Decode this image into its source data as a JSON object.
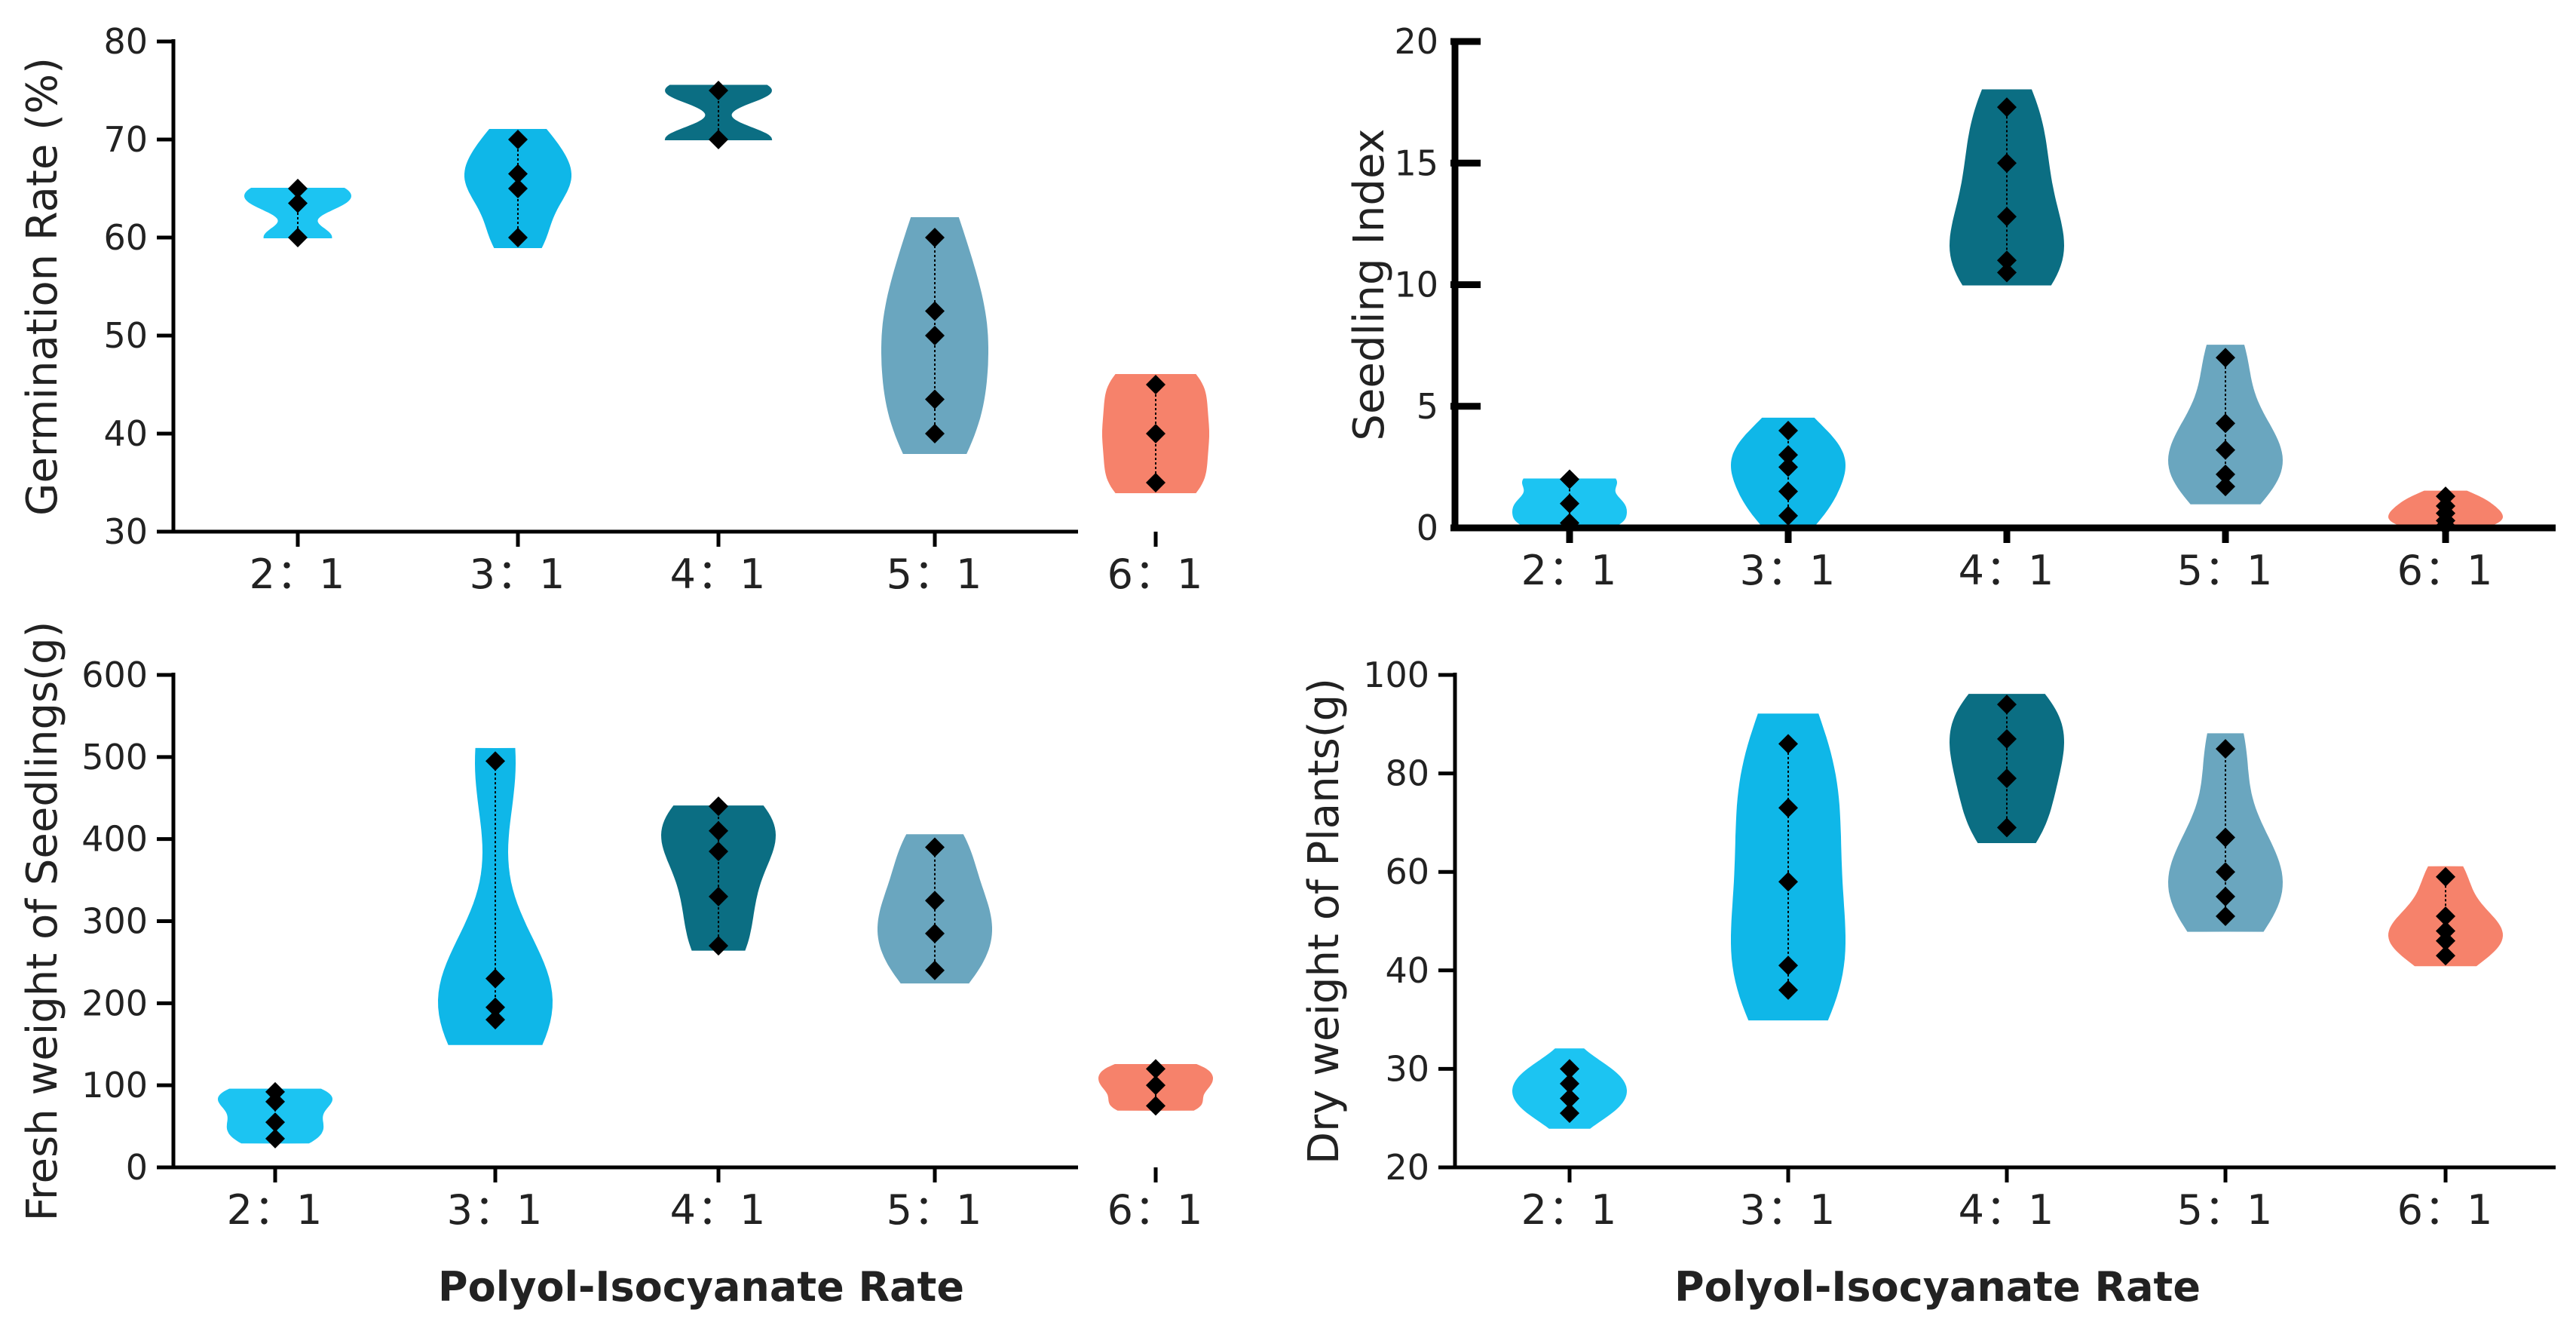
{
  "colors": {
    "2:1": "#1cc4f2",
    "3:1": "#0fb7e8",
    "4:1": "#0b6e83",
    "5:1": "#6aa6bf",
    "6:1": "#f6826b",
    "point": "#000000",
    "axis": "#000000"
  },
  "common_xlabel": "Polyol-Isocyanate Rate",
  "chart_data": [
    {
      "type": "violin",
      "id": "germination",
      "title": "",
      "ylabel": "Germination Rate (%)",
      "xlabel": "",
      "ylim": [
        30,
        80
      ],
      "yticks": [
        30,
        40,
        50,
        60,
        70,
        80
      ],
      "categories": [
        "2：1",
        "3：1",
        "4：1",
        "5：1",
        "6：1"
      ],
      "series": [
        {
          "name": "2：1",
          "range": [
            60,
            65
          ],
          "points": [
            60,
            63.5,
            65
          ]
        },
        {
          "name": "3：1",
          "range": [
            59,
            71
          ],
          "points": [
            60,
            65,
            66.5,
            70
          ]
        },
        {
          "name": "4：1",
          "range": [
            70,
            75.5
          ],
          "points": [
            70,
            75
          ]
        },
        {
          "name": "5：1",
          "range": [
            38,
            62
          ],
          "points": [
            40,
            43.5,
            50,
            52.5,
            60
          ]
        },
        {
          "name": "6：1",
          "range": [
            34,
            46
          ],
          "points": [
            35,
            40,
            45
          ]
        }
      ]
    },
    {
      "type": "violin",
      "id": "seedling-index",
      "title": "",
      "ylabel": "Seedling Index",
      "xlabel": "",
      "ylim": [
        0,
        20
      ],
      "yticks": [
        0,
        5,
        10,
        15,
        20
      ],
      "categories": [
        "2：1",
        "3：1",
        "4：1",
        "5：1",
        "6：1"
      ],
      "series": [
        {
          "name": "2：1",
          "range": [
            0,
            2
          ],
          "points": [
            0.2,
            1,
            2
          ]
        },
        {
          "name": "3：1",
          "range": [
            0,
            4.5
          ],
          "points": [
            0.5,
            1.5,
            2.5,
            3,
            4
          ]
        },
        {
          "name": "4：1",
          "range": [
            10,
            18
          ],
          "points": [
            10.5,
            11,
            12.8,
            15,
            17.3
          ]
        },
        {
          "name": "5：1",
          "range": [
            1,
            7.5
          ],
          "points": [
            1.7,
            2.2,
            3.2,
            4.3,
            7
          ]
        },
        {
          "name": "6：1",
          "range": [
            0,
            1.5
          ],
          "points": [
            0.1,
            0.3,
            0.6,
            0.9,
            1.3
          ]
        }
      ]
    },
    {
      "type": "violin",
      "id": "fresh-weight",
      "title": "",
      "ylabel": "Fresh weight of Seedlings(g)",
      "xlabel": "Polyol-Isocyanate Rate",
      "ylim": [
        0,
        600
      ],
      "yticks": [
        0,
        100,
        200,
        300,
        400,
        500,
        600
      ],
      "categories": [
        "2：1",
        "3：1",
        "4：1",
        "5：1",
        "6：1"
      ],
      "series": [
        {
          "name": "2：1",
          "range": [
            30,
            95
          ],
          "points": [
            35,
            55,
            80,
            92
          ]
        },
        {
          "name": "3：1",
          "range": [
            150,
            510
          ],
          "points": [
            180,
            195,
            230,
            495
          ]
        },
        {
          "name": "4：1",
          "range": [
            265,
            440
          ],
          "points": [
            270,
            330,
            385,
            410,
            440
          ]
        },
        {
          "name": "5：1",
          "range": [
            225,
            405
          ],
          "points": [
            240,
            285,
            325,
            390
          ]
        },
        {
          "name": "6：1",
          "range": [
            70,
            125
          ],
          "points": [
            75,
            100,
            120
          ]
        }
      ]
    },
    {
      "type": "violin",
      "id": "dry-weight",
      "title": "",
      "ylabel": "Dry weight of Plants(g)",
      "xlabel": "Polyol-Isocyanate Rate",
      "ylim": [
        20,
        100
      ],
      "yticks": [
        20,
        30,
        40,
        60,
        80,
        100
      ],
      "categories": [
        "2：1",
        "3：1",
        "4：1",
        "5：1",
        "6：1"
      ],
      "series": [
        {
          "name": "2：1",
          "range": [
            24,
            32
          ],
          "points": [
            25.5,
            27,
            28.5,
            30
          ]
        },
        {
          "name": "3：1",
          "range": [
            35,
            92
          ],
          "points": [
            38,
            41,
            58,
            73,
            86
          ]
        },
        {
          "name": "4：1",
          "range": [
            66,
            96
          ],
          "points": [
            69,
            79,
            87,
            94
          ]
        },
        {
          "name": "5：1",
          "range": [
            48,
            88
          ],
          "points": [
            51,
            55,
            60,
            67,
            85
          ]
        },
        {
          "name": "6：1",
          "range": [
            41,
            61
          ],
          "points": [
            43,
            46,
            48,
            51,
            59
          ]
        }
      ]
    }
  ]
}
